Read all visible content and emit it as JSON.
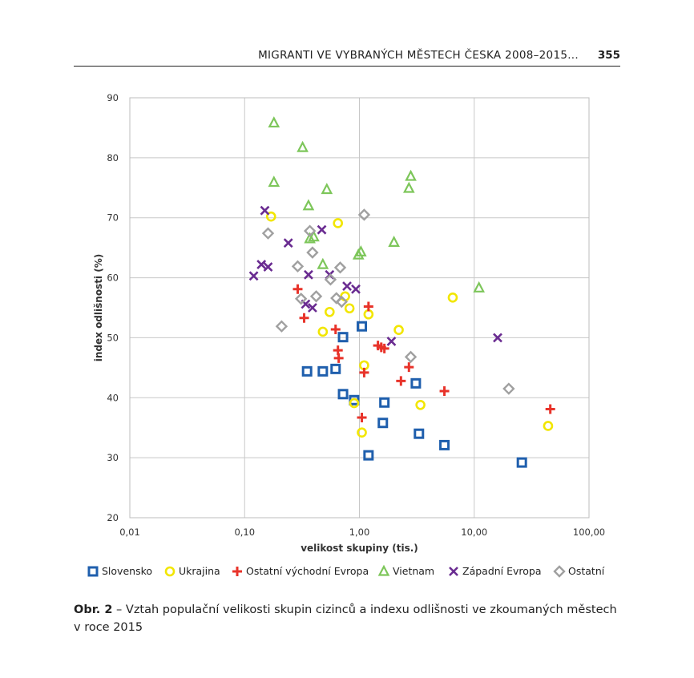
{
  "header": {
    "running_title": "MIGRANTI VE VYBRANÝCH MĚSTECH ČESKA 2008–2015...",
    "page_number": "355"
  },
  "caption": {
    "label": "Obr. 2",
    "text": " – Vztah populační velikosti skupin cizinců a indexu odlišnosti ve zkoumaných městech v roce 2015"
  },
  "chart_data": {
    "type": "scatter",
    "x_scale": "log",
    "xlabel": "velikost skupiny (tis.)",
    "ylabel": "index odlišnosti (%)",
    "xlim": [
      0.01,
      100
    ],
    "ylim": [
      20,
      90
    ],
    "x_ticks": [
      "0,01",
      "0,10",
      "1,00",
      "10,00",
      "100,00"
    ],
    "y_ticks": [
      "20",
      "30",
      "40",
      "50",
      "60",
      "70",
      "80",
      "90"
    ],
    "grid": true,
    "legend_position": "bottom",
    "series": [
      {
        "name": "Slovensko",
        "marker": "square",
        "color": "#1f5fad",
        "points": [
          [
            0.35,
            44.4
          ],
          [
            0.48,
            44.4
          ],
          [
            0.62,
            44.8
          ],
          [
            0.72,
            50.1
          ],
          [
            0.72,
            40.6
          ],
          [
            0.9,
            39.6
          ],
          [
            1.05,
            51.9
          ],
          [
            1.2,
            30.4
          ],
          [
            1.6,
            35.8
          ],
          [
            1.65,
            39.2
          ],
          [
            3.1,
            42.4
          ],
          [
            3.3,
            34
          ],
          [
            5.5,
            32.1
          ],
          [
            26,
            29.2
          ]
        ]
      },
      {
        "name": "Ukrajina",
        "marker": "circle",
        "color": "#f2e600",
        "points": [
          [
            0.17,
            70.2
          ],
          [
            0.48,
            51
          ],
          [
            0.55,
            54.3
          ],
          [
            0.65,
            69.1
          ],
          [
            0.75,
            56.9
          ],
          [
            0.82,
            54.9
          ],
          [
            0.9,
            39.1
          ],
          [
            1.05,
            34.2
          ],
          [
            1.1,
            45.4
          ],
          [
            1.2,
            53.9
          ],
          [
            2.2,
            51.3
          ],
          [
            3.4,
            38.8
          ],
          [
            6.5,
            56.7
          ],
          [
            44,
            35.3
          ]
        ]
      },
      {
        "name": "Ostatní východní Evropa",
        "marker": "plus",
        "color": "#e8332a",
        "points": [
          [
            0.29,
            58.1
          ],
          [
            0.33,
            53.3
          ],
          [
            0.62,
            51.4
          ],
          [
            0.65,
            47.9
          ],
          [
            0.66,
            46.6
          ],
          [
            1.05,
            36.7
          ],
          [
            1.1,
            44.2
          ],
          [
            1.2,
            55.2
          ],
          [
            1.45,
            48.7
          ],
          [
            1.55,
            48.4
          ],
          [
            1.65,
            48.2
          ],
          [
            2.3,
            42.8
          ],
          [
            2.7,
            45.1
          ],
          [
            5.5,
            41.1
          ],
          [
            46,
            38.1
          ]
        ]
      },
      {
        "name": "Vietnam",
        "marker": "triangle",
        "color": "#7dc65a",
        "points": [
          [
            0.18,
            85.8
          ],
          [
            0.18,
            75.9
          ],
          [
            0.32,
            81.7
          ],
          [
            0.36,
            72
          ],
          [
            0.37,
            66.5
          ],
          [
            0.4,
            66.8
          ],
          [
            0.48,
            62.2
          ],
          [
            0.52,
            74.7
          ],
          [
            0.98,
            63.8
          ],
          [
            1.03,
            64.3
          ],
          [
            2,
            65.9
          ],
          [
            2.7,
            74.9
          ],
          [
            2.8,
            76.9
          ],
          [
            11,
            58.3
          ]
        ]
      },
      {
        "name": "Západní Evropa",
        "marker": "x",
        "color": "#6a2c91",
        "points": [
          [
            0.12,
            60.3
          ],
          [
            0.14,
            62.2
          ],
          [
            0.15,
            71.2
          ],
          [
            0.16,
            61.8
          ],
          [
            0.24,
            65.8
          ],
          [
            0.34,
            55.6
          ],
          [
            0.36,
            60.5
          ],
          [
            0.39,
            55
          ],
          [
            0.47,
            68
          ],
          [
            0.55,
            60.5
          ],
          [
            0.78,
            58.6
          ],
          [
            0.93,
            58.1
          ],
          [
            1.9,
            49.4
          ],
          [
            16,
            50
          ]
        ]
      },
      {
        "name": "Ostatní",
        "marker": "diamond",
        "color": "#a0a0a0",
        "points": [
          [
            0.16,
            67.4
          ],
          [
            0.21,
            51.9
          ],
          [
            0.29,
            61.9
          ],
          [
            0.31,
            56.5
          ],
          [
            0.37,
            67.8
          ],
          [
            0.39,
            64.2
          ],
          [
            0.42,
            56.9
          ],
          [
            0.56,
            59.7
          ],
          [
            0.63,
            56.6
          ],
          [
            0.68,
            61.7
          ],
          [
            0.7,
            56
          ],
          [
            1.1,
            70.5
          ],
          [
            2.8,
            46.8
          ],
          [
            20,
            41.5
          ]
        ]
      }
    ]
  }
}
